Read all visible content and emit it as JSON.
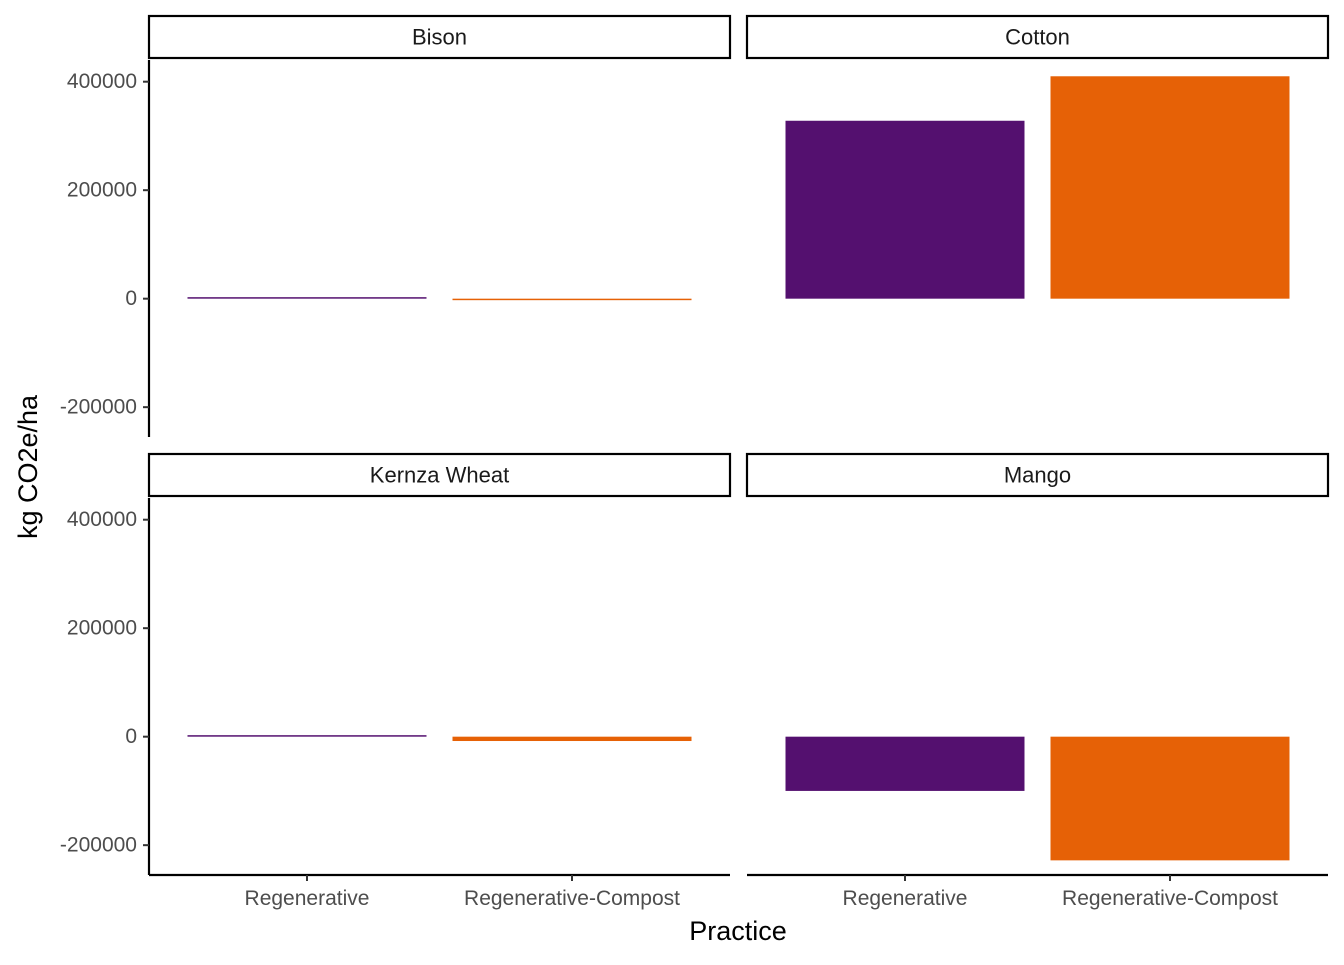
{
  "chart_data": {
    "type": "bar",
    "layout": "faceted 2x2",
    "title": "",
    "xlabel": "Practice",
    "ylabel": "kg CO2e/ha",
    "categories": [
      "Regenerative",
      "Regenerative-Compost"
    ],
    "ylim": [
      -255000,
      440000
    ],
    "yticks": [
      -200000,
      0,
      200000,
      400000
    ],
    "legend": "none",
    "grid": false,
    "colors": {
      "Regenerative": "#54106f",
      "Regenerative-Compost": "#e66106"
    },
    "facets": [
      {
        "name": "Bison",
        "values": [
          1000,
          -2000
        ]
      },
      {
        "name": "Cotton",
        "values": [
          328000,
          410000
        ]
      },
      {
        "name": "Kernza Wheat",
        "values": [
          2500,
          -8000
        ]
      },
      {
        "name": "Mango",
        "values": [
          -100000,
          -228000
        ]
      }
    ]
  }
}
